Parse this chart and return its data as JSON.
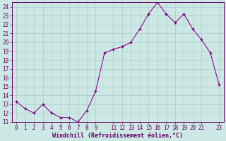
{
  "xlabel": "Windchill (Refroidissement éolien,°C)",
  "hours": [
    0,
    1,
    2,
    3,
    4,
    5,
    6,
    7,
    8,
    9,
    10,
    11,
    12,
    13,
    14,
    15,
    16,
    17,
    18,
    19,
    20,
    21,
    22,
    23
  ],
  "values": [
    13.3,
    12.5,
    12.0,
    13.0,
    12.0,
    11.5,
    11.5,
    11.0,
    12.3,
    14.5,
    18.8,
    19.2,
    19.5,
    20.0,
    21.5,
    23.2,
    24.5,
    23.2,
    22.2,
    23.2,
    21.5,
    20.3,
    18.8,
    15.2
  ],
  "ylim": [
    11,
    24.5
  ],
  "xlim": [
    -0.5,
    23.5
  ],
  "bg_color": "#cce8e4",
  "grid_color": "#aaccca",
  "line_color": "#990099",
  "marker_color": "#660066",
  "font_color": "#660066",
  "yticks": [
    11,
    12,
    13,
    14,
    15,
    16,
    17,
    18,
    19,
    20,
    21,
    22,
    23,
    24
  ],
  "xtick_positions": [
    0,
    1,
    2,
    3,
    4,
    5,
    6,
    7,
    8,
    9,
    11,
    12,
    13,
    14,
    15,
    16,
    17,
    18,
    19,
    20,
    21,
    23
  ],
  "xtick_labels": [
    "0",
    "1",
    "2",
    "3",
    "4",
    "5",
    "6",
    "7",
    "8",
    "9",
    "11",
    "12",
    "13",
    "14",
    "15",
    "16",
    "17",
    "18",
    "19",
    "20",
    "21",
    "23"
  ],
  "ylabel_fontsize": 5.5,
  "xlabel_fontsize": 6,
  "tick_labelsize": 5.5
}
